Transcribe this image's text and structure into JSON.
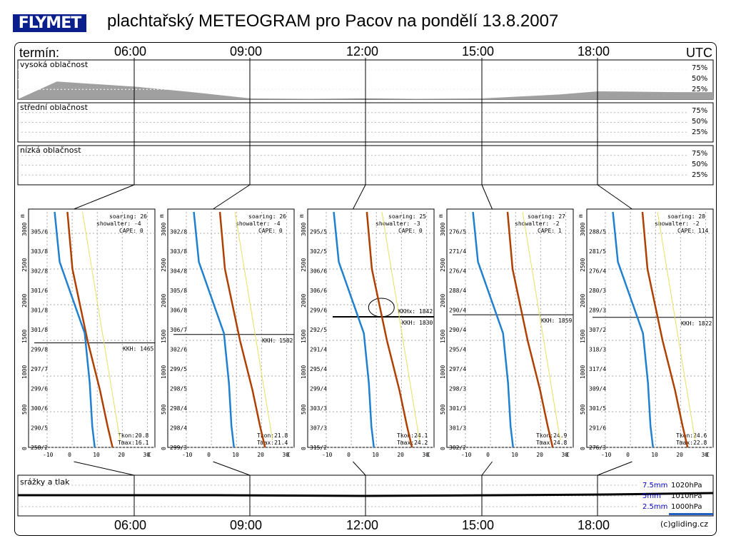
{
  "header": {
    "logo": "FLYMET",
    "title": "plachtařský METEOGRAM pro Pacov na pondělí 13.8.2007",
    "termin": "termín:",
    "utc": "UTC"
  },
  "times": [
    "06:00",
    "09:00",
    "12:00",
    "15:00",
    "18:00"
  ],
  "clouds": {
    "high": "vysoká oblačnost",
    "mid": "střední oblačnost",
    "low": "nízká oblačnost",
    "pct": [
      "75%",
      "50%",
      "25%"
    ]
  },
  "precip": {
    "title": "srážky a tlak",
    "r1": "7.5mm",
    "p1": "1020hPa",
    "r2": "5mm",
    "p2": "1010hPa",
    "r3": "2.5mm",
    "p3": "1000hPa"
  },
  "credit": "(c)gliding.cz",
  "colors": {
    "temp": "#b04000",
    "dew": "#2080d0",
    "dry": "#e8e060",
    "cloud": "#a0a0a0",
    "blue": "#0000c0"
  },
  "chart_data": {
    "type": "line",
    "high_cloud_cover": {
      "x": [
        "04:00",
        "06:00",
        "07:30",
        "09:00",
        "12:00",
        "15:00",
        "17:00",
        "18:00",
        "20:00"
      ],
      "y": [
        45,
        32,
        18,
        2,
        0,
        2,
        12,
        20,
        18
      ]
    },
    "altitude_ticks": [
      0,
      500,
      1000,
      1500,
      2000,
      2500,
      3000
    ],
    "temp_ticks": [
      -10,
      0,
      10,
      20,
      30
    ],
    "temp_unit": "C",
    "altitude_unit": "m",
    "soundings": [
      {
        "time": "06:00",
        "soaring": "soaring: 26",
        "showalter": "showalter: -4",
        "cape": "CAPE:  0",
        "kkh": "KKH: 1465",
        "tkon": "Tkon:20.8",
        "tmax": "Tmax:16.1",
        "wind": [
          "258/2",
          "290/5",
          "300/6",
          "299/6",
          "297/7",
          "299/8",
          "301/8",
          "301/8",
          "301/6",
          "302/8",
          "303/8",
          "305/6"
        ]
      },
      {
        "time": "09:00",
        "soaring": "soaring: 26",
        "showalter": "showalter: -4",
        "cape": "CAPE:  0",
        "kkh": "KKH: 1582",
        "tkon": "Tkon:21.8",
        "tmax": "Tmax:21.4",
        "wind": [
          "299/3",
          "298/4",
          "298/4",
          "298/5",
          "299/5",
          "302/6",
          "306/7",
          "306/8",
          "305/8",
          "304/8",
          "303/8",
          "302/8"
        ]
      },
      {
        "time": "12:00",
        "soaring": "soaring: 25",
        "showalter": "showalter: -3",
        "cape": "CAPE:  0",
        "kkh": "KKH: 1830",
        "kkhx": "KKHx: 1842",
        "tkon": "Tkon:24.1",
        "tmax": "Tmax:24.2",
        "wind": [
          "315/2",
          "307/3",
          "303/3",
          "299/4",
          "295/4",
          "291/4",
          "292/5",
          "299/6",
          "306/6",
          "306/6",
          "302/5",
          "295/5"
        ]
      },
      {
        "time": "15:00",
        "soaring": "soaring: 27",
        "showalter": "showalter: -2",
        "cape": "CAPE:  1",
        "kkh": "KKH: 1859",
        "tkon": "Tkon:24.9",
        "tmax": "Tmax:24.8",
        "wind": [
          "302/2",
          "301/3",
          "301/3",
          "298/3",
          "297/4",
          "295/4",
          "290/4",
          "290/4",
          "288/4",
          "276/4",
          "271/4",
          "276/5"
        ]
      },
      {
        "time": "18:00",
        "soaring": "soaring: 28",
        "showalter": "showalter: -2",
        "cape": "CAPE: 114",
        "kkh": "KKH: 1822",
        "tkon": "Tkon:24.6",
        "tmax": "Tmax:22.8",
        "wind": [
          "276/3",
          "291/6",
          "301/5",
          "309/4",
          "317/4",
          "318/3",
          "307/2",
          "289/3",
          "280/3",
          "276/4",
          "281/5",
          "288/5"
        ]
      }
    ]
  }
}
